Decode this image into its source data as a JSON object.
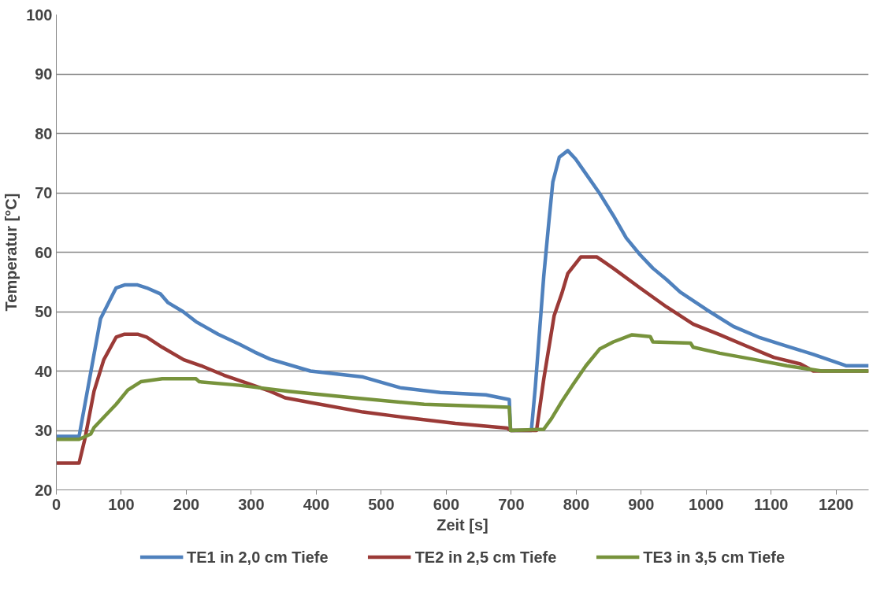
{
  "chart_data": {
    "type": "line",
    "xlabel": "Zeit [s]",
    "ylabel": "Temperatur [°C]",
    "xlim": [
      0,
      1250
    ],
    "ylim": [
      20,
      100
    ],
    "xticks": [
      0,
      100,
      200,
      300,
      400,
      500,
      600,
      700,
      800,
      900,
      1000,
      1100,
      1200
    ],
    "yticks": [
      20,
      30,
      40,
      50,
      60,
      70,
      80,
      90,
      100
    ],
    "grid": "y",
    "legend": "bottom",
    "line_style": "solid",
    "marker": "none",
    "series": [
      {
        "name": "TE1 in 2,0 cm Tiefe",
        "color": "#4f81bd",
        "x": [
          0,
          35,
          68,
          92,
          105,
          125,
          139,
          160,
          172,
          195,
          215,
          249,
          282,
          305,
          329,
          391,
          472,
          529,
          591,
          661,
          697,
          699,
          731,
          737,
          750,
          758,
          764,
          774,
          787,
          799,
          815,
          836,
          857,
          877,
          898,
          918,
          939,
          960,
          1001,
          1042,
          1083,
          1124,
          1165,
          1215,
          1250
        ],
        "values": [
          29,
          29,
          48.8,
          54,
          54.5,
          54.5,
          54,
          53,
          51.5,
          50,
          48.3,
          46.2,
          44.5,
          43.2,
          42,
          40,
          39,
          37.2,
          36.4,
          36,
          35.2,
          30,
          30,
          37.2,
          55.9,
          65.2,
          71.8,
          76,
          77.1,
          75.7,
          73.2,
          69.9,
          66.2,
          62.4,
          59.6,
          57.3,
          55.4,
          53.3,
          50.3,
          47.5,
          45.6,
          44.2,
          42.8,
          40.9,
          40.9
        ]
      },
      {
        "name": "TE2 in 2,5 cm Tiefe",
        "color": "#9b3a37",
        "x": [
          0,
          35,
          44,
          58,
          73,
          92,
          105,
          125,
          139,
          163,
          196,
          225,
          258,
          282,
          329,
          352,
          391,
          472,
          529,
          614,
          694,
          699,
          739,
          750,
          766,
          778,
          787,
          807,
          832,
          857,
          898,
          939,
          980,
          1021,
          1062,
          1104,
          1145,
          1165,
          1250
        ],
        "values": [
          24.5,
          24.5,
          28.6,
          36.6,
          41.9,
          45.7,
          46.2,
          46.2,
          45.7,
          44,
          41.9,
          40.8,
          39.3,
          38.4,
          36.6,
          35.5,
          34.7,
          33.1,
          32.3,
          31.2,
          30.4,
          30,
          30,
          38.6,
          49.3,
          53.1,
          56.4,
          59.2,
          59.2,
          57.3,
          54,
          50.8,
          47.9,
          46.1,
          44.2,
          42.3,
          41.2,
          40,
          40
        ]
      },
      {
        "name": "TE3 in 3,5 cm Tiefe",
        "color": "#77933c",
        "x": [
          0,
          35,
          53,
          58,
          92,
          110,
          130,
          163,
          215,
          220,
          282,
          357,
          457,
          566,
          697,
          699,
          750,
          762,
          778,
          795,
          815,
          836,
          857,
          886,
          914,
          918,
          976,
          980,
          1021,
          1071,
          1124,
          1178,
          1250
        ],
        "values": [
          28.5,
          28.5,
          29.4,
          30.5,
          34.4,
          36.8,
          38.2,
          38.7,
          38.7,
          38.2,
          37.6,
          36.6,
          35.5,
          34.4,
          33.9,
          30,
          30.2,
          32,
          34.9,
          37.7,
          40.9,
          43.7,
          44.9,
          46.1,
          45.8,
          44.9,
          44.7,
          44,
          43,
          42,
          40.9,
          40,
          40
        ]
      }
    ]
  }
}
